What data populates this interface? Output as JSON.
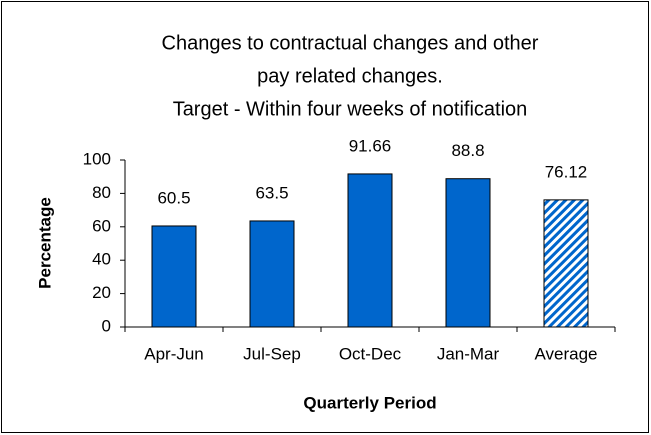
{
  "chart_data": {
    "type": "bar",
    "title": [
      "Changes to contractual changes and other",
      "pay related changes.",
      "Target - Within four weeks of notification"
    ],
    "x_label": "Quarterly Period",
    "y_label": "Percentage",
    "categories": [
      "Apr-Jun",
      "Jul-Sep",
      "Oct-Dec",
      "Jan-Mar",
      "Average"
    ],
    "values": [
      60.5,
      63.5,
      91.66,
      88.8,
      76.12
    ],
    "hatched": [
      false,
      false,
      false,
      false,
      true
    ],
    "color": "#0066cc",
    "ylim": [
      0,
      100
    ],
    "yticks": [
      0,
      20,
      40,
      60,
      80,
      100
    ],
    "grid": false
  }
}
